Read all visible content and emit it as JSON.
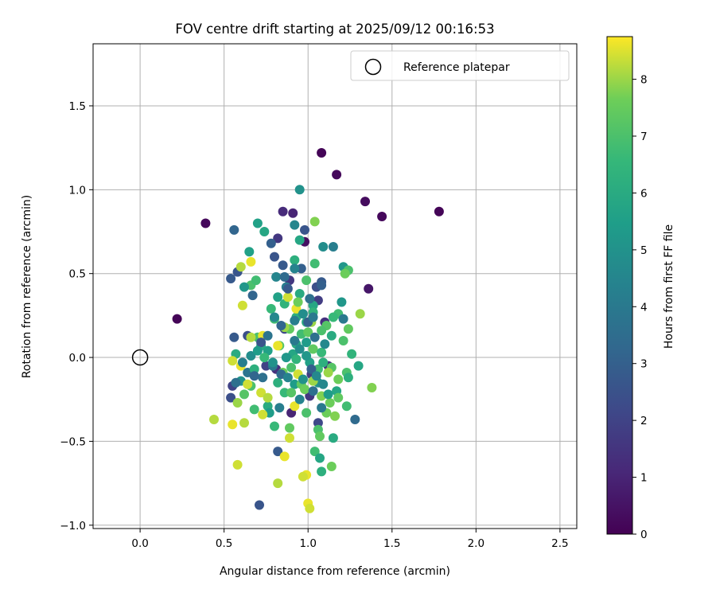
{
  "chart_data": {
    "type": "scatter",
    "title": "FOV centre drift starting at 2025/09/12 00:16:53",
    "xlabel": "Angular distance from reference (arcmin)",
    "ylabel": "Rotation from reference (arcmin)",
    "xlim": [
      -0.28,
      2.6
    ],
    "ylim": [
      -1.02,
      1.87
    ],
    "xticks": [
      0.0,
      0.5,
      1.0,
      1.5,
      2.0,
      2.5
    ],
    "xtick_labels": [
      "0.0",
      "0.5",
      "1.0",
      "1.5",
      "2.0",
      "2.5"
    ],
    "yticks": [
      -1.0,
      -0.5,
      0.0,
      0.5,
      1.0,
      1.5
    ],
    "ytick_labels": [
      "−1.0",
      "−0.5",
      "0.0",
      "0.5",
      "1.0",
      "1.5"
    ],
    "grid": true,
    "legend": {
      "placement": "top-right",
      "entries": [
        "Reference platepar"
      ]
    },
    "reference_point": {
      "name": "Reference platepar",
      "x": 0.0,
      "y": 0.0
    },
    "colorbar": {
      "label": "Hours from first FF file",
      "colormap": "viridis",
      "range": [
        0,
        8.75
      ],
      "ticks": [
        0,
        1,
        2,
        3,
        4,
        5,
        6,
        7,
        8
      ],
      "tick_labels": [
        "0",
        "1",
        "2",
        "3",
        "4",
        "5",
        "6",
        "7",
        "8"
      ]
    },
    "points": [
      [
        1.08,
        1.22,
        0.1
      ],
      [
        1.17,
        1.09,
        0.2
      ],
      [
        1.34,
        0.93,
        0.3
      ],
      [
        1.44,
        0.84,
        0.2
      ],
      [
        1.78,
        0.87,
        0.1
      ],
      [
        0.39,
        0.8,
        0.2
      ],
      [
        0.22,
        0.23,
        0.1
      ],
      [
        1.36,
        0.41,
        0.6
      ],
      [
        0.98,
        0.69,
        0.4
      ],
      [
        0.85,
        0.87,
        1.2
      ],
      [
        0.91,
        0.86,
        1.0
      ],
      [
        0.56,
        0.76,
        3.2
      ],
      [
        0.82,
        0.71,
        1.6
      ],
      [
        0.98,
        0.76,
        2.6
      ],
      [
        0.54,
        0.47,
        2.8
      ],
      [
        0.58,
        0.51,
        2.6
      ],
      [
        0.67,
        0.37,
        3.2
      ],
      [
        0.56,
        0.12,
        2.8
      ],
      [
        0.64,
        0.13,
        2.4
      ],
      [
        0.55,
        -0.17,
        2.0
      ],
      [
        0.54,
        -0.24,
        2.4
      ],
      [
        0.71,
        -0.88,
        2.6
      ],
      [
        0.82,
        -0.56,
        2.8
      ],
      [
        0.9,
        -0.33,
        1.0
      ],
      [
        1.06,
        -0.39,
        2.2
      ],
      [
        1.28,
        -0.37,
        3.4
      ],
      [
        1.01,
        -0.23,
        1.6
      ],
      [
        1.02,
        -0.1,
        1.8
      ],
      [
        1.12,
        -0.05,
        1.4
      ],
      [
        0.81,
        -0.07,
        1.4
      ],
      [
        0.75,
        -0.05,
        2.0
      ],
      [
        0.86,
        0.17,
        2.2
      ],
      [
        1.1,
        0.21,
        1.4
      ],
      [
        1.06,
        0.34,
        1.8
      ],
      [
        1.05,
        0.42,
        2.4
      ],
      [
        1.08,
        0.45,
        2.8
      ],
      [
        0.89,
        0.46,
        1.6
      ],
      [
        0.96,
        0.53,
        3.0
      ],
      [
        0.85,
        0.55,
        2.8
      ],
      [
        0.8,
        0.6,
        2.6
      ],
      [
        0.78,
        0.68,
        3.0
      ],
      [
        0.92,
        0.79,
        4.5
      ],
      [
        0.95,
        1.0,
        5.0
      ],
      [
        0.7,
        0.8,
        5.6
      ],
      [
        0.74,
        0.75,
        5.8
      ],
      [
        0.95,
        0.7,
        5.8
      ],
      [
        1.09,
        0.66,
        4.8
      ],
      [
        1.15,
        0.66,
        4.2
      ],
      [
        0.65,
        0.63,
        5.6
      ],
      [
        0.92,
        0.58,
        6.2
      ],
      [
        1.04,
        0.56,
        6.8
      ],
      [
        1.21,
        0.54,
        5.2
      ],
      [
        1.24,
        0.52,
        7.0
      ],
      [
        1.22,
        0.5,
        7.6
      ],
      [
        0.99,
        0.46,
        7.0
      ],
      [
        0.66,
        0.43,
        7.0
      ],
      [
        0.69,
        0.46,
        6.8
      ],
      [
        0.62,
        0.42,
        5.2
      ],
      [
        0.81,
        0.48,
        4.5
      ],
      [
        0.87,
        0.42,
        4.2
      ],
      [
        0.95,
        0.38,
        6.0
      ],
      [
        0.86,
        0.32,
        6.4
      ],
      [
        0.82,
        0.36,
        5.6
      ],
      [
        1.03,
        0.31,
        5.8
      ],
      [
        1.03,
        0.27,
        6.4
      ],
      [
        1.2,
        0.33,
        5.2
      ],
      [
        1.18,
        0.26,
        6.8
      ],
      [
        1.21,
        0.23,
        4.0
      ],
      [
        1.24,
        0.17,
        7.4
      ],
      [
        1.31,
        0.26,
        8.0
      ],
      [
        1.11,
        0.19,
        7.2
      ],
      [
        0.93,
        0.24,
        6.2
      ],
      [
        0.78,
        0.29,
        6.6
      ],
      [
        0.8,
        0.23,
        6.8
      ],
      [
        0.89,
        0.17,
        7.4
      ],
      [
        0.99,
        0.21,
        6.0
      ],
      [
        0.96,
        0.14,
        6.8
      ],
      [
        0.93,
        0.08,
        6.0
      ],
      [
        0.99,
        0.09,
        5.4
      ],
      [
        1.03,
        0.05,
        7.4
      ],
      [
        1.08,
        0.03,
        6.6
      ],
      [
        0.91,
        0.02,
        5.8
      ],
      [
        0.83,
        0.07,
        7.2
      ],
      [
        0.72,
        0.07,
        6.0
      ],
      [
        0.7,
        0.12,
        7.0
      ],
      [
        0.76,
        0.04,
        5.6
      ],
      [
        0.57,
        0.02,
        6.0
      ],
      [
        0.66,
        0.01,
        4.8
      ],
      [
        0.64,
        -0.09,
        3.8
      ],
      [
        0.6,
        -0.14,
        5.0
      ],
      [
        0.66,
        -0.17,
        7.0
      ],
      [
        0.62,
        -0.22,
        7.2
      ],
      [
        0.68,
        -0.31,
        6.8
      ],
      [
        0.76,
        -0.29,
        6.0
      ],
      [
        0.77,
        -0.33,
        5.4
      ],
      [
        0.8,
        -0.41,
        6.6
      ],
      [
        0.89,
        -0.42,
        7.4
      ],
      [
        0.86,
        -0.21,
        6.6
      ],
      [
        0.82,
        -0.15,
        6.2
      ],
      [
        0.92,
        -0.16,
        5.4
      ],
      [
        0.96,
        -0.16,
        7.4
      ],
      [
        0.98,
        -0.19,
        7.6
      ],
      [
        0.9,
        -0.06,
        7.0
      ],
      [
        1.01,
        -0.03,
        5.6
      ],
      [
        1.06,
        -0.07,
        6.8
      ],
      [
        1.09,
        -0.03,
        6.2
      ],
      [
        1.14,
        -0.06,
        7.2
      ],
      [
        1.06,
        -0.15,
        5.0
      ],
      [
        1.08,
        -0.23,
        7.8
      ],
      [
        1.17,
        -0.2,
        5.8
      ],
      [
        1.18,
        -0.24,
        7.4
      ],
      [
        1.23,
        -0.09,
        7.0
      ],
      [
        1.13,
        -0.27,
        7.6
      ],
      [
        1.23,
        -0.29,
        6.8
      ],
      [
        1.38,
        -0.18,
        7.8
      ],
      [
        1.11,
        -0.33,
        7.6
      ],
      [
        1.15,
        -0.48,
        6.0
      ],
      [
        1.06,
        -0.43,
        7.0
      ],
      [
        1.07,
        -0.47,
        7.4
      ],
      [
        1.04,
        -0.56,
        6.8
      ],
      [
        1.07,
        -0.6,
        5.8
      ],
      [
        1.08,
        -0.68,
        6.2
      ],
      [
        1.14,
        -0.65,
        7.6
      ],
      [
        0.99,
        -0.33,
        7.0
      ],
      [
        0.9,
        -0.21,
        7.2
      ],
      [
        0.73,
        -0.34,
        8.4
      ],
      [
        0.72,
        -0.21,
        8.4
      ],
      [
        0.76,
        -0.24,
        8.2
      ],
      [
        0.92,
        -0.29,
        8.6
      ],
      [
        0.94,
        -0.1,
        8.4
      ],
      [
        0.89,
        -0.48,
        8.4
      ],
      [
        0.86,
        -0.59,
        8.6
      ],
      [
        0.82,
        -0.75,
        8.2
      ],
      [
        0.99,
        -0.7,
        8.6
      ],
      [
        0.97,
        -0.71,
        8.4
      ],
      [
        1.0,
        -0.87,
        8.6
      ],
      [
        1.01,
        -0.9,
        8.4
      ],
      [
        0.58,
        -0.64,
        8.4
      ],
      [
        0.55,
        -0.4,
        8.6
      ],
      [
        0.62,
        -0.39,
        8.2
      ],
      [
        0.44,
        -0.37,
        8.2
      ],
      [
        0.58,
        -0.27,
        8.0
      ],
      [
        0.6,
        -0.05,
        8.6
      ],
      [
        0.55,
        -0.02,
        8.4
      ],
      [
        0.64,
        -0.16,
        8.4
      ],
      [
        0.73,
        0.13,
        8.6
      ],
      [
        0.66,
        0.12,
        8.2
      ],
      [
        0.82,
        0.07,
        8.6
      ],
      [
        0.61,
        0.31,
        8.4
      ],
      [
        0.66,
        0.57,
        8.6
      ],
      [
        0.6,
        0.54,
        8.2
      ],
      [
        0.86,
        0.18,
        8.0
      ],
      [
        0.93,
        0.29,
        8.6
      ],
      [
        0.88,
        0.36,
        8.4
      ],
      [
        1.04,
        0.81,
        7.8
      ],
      [
        1.0,
        0.15,
        7.4
      ],
      [
        0.94,
        0.33,
        7.6
      ],
      [
        1.08,
        0.16,
        7.0
      ],
      [
        1.02,
        0.21,
        8.0
      ],
      [
        1.15,
        0.24,
        6.6
      ],
      [
        1.12,
        -0.09,
        8.0
      ],
      [
        1.18,
        -0.13,
        7.6
      ],
      [
        1.16,
        -0.35,
        7.8
      ],
      [
        1.03,
        -0.14,
        8.0
      ],
      [
        0.85,
        -0.09,
        7.6
      ],
      [
        0.68,
        -0.07,
        6.2
      ],
      [
        0.73,
        -0.12,
        3.6
      ],
      [
        0.79,
        -0.05,
        4.0
      ],
      [
        0.84,
        -0.1,
        3.4
      ],
      [
        0.88,
        -0.12,
        4.4
      ],
      [
        0.97,
        -0.13,
        5.0
      ],
      [
        1.02,
        -0.07,
        3.0
      ],
      [
        1.05,
        -0.11,
        4.6
      ],
      [
        0.99,
        0.01,
        5.2
      ],
      [
        0.95,
        0.05,
        4.8
      ],
      [
        0.92,
        0.1,
        4.0
      ],
      [
        1.04,
        0.12,
        3.6
      ],
      [
        1.1,
        0.08,
        4.6
      ],
      [
        1.0,
        0.21,
        3.0
      ],
      [
        1.03,
        0.24,
        4.0
      ],
      [
        0.97,
        0.26,
        4.8
      ],
      [
        0.92,
        0.22,
        4.2
      ],
      [
        0.84,
        0.19,
        3.2
      ],
      [
        0.8,
        0.24,
        4.6
      ],
      [
        0.76,
        0.13,
        3.8
      ],
      [
        0.88,
        0.41,
        2.8
      ],
      [
        0.86,
        0.48,
        3.4
      ],
      [
        0.92,
        0.53,
        4.4
      ],
      [
        1.08,
        0.43,
        3.0
      ],
      [
        1.01,
        0.35,
        3.6
      ],
      [
        0.72,
        0.09,
        2.6
      ],
      [
        0.68,
        -0.11,
        3.2
      ],
      [
        0.61,
        -0.03,
        4.2
      ],
      [
        0.57,
        -0.15,
        3.6
      ],
      [
        0.83,
        -0.3,
        4.2
      ],
      [
        0.95,
        -0.25,
        4.4
      ],
      [
        1.03,
        -0.2,
        3.6
      ],
      [
        1.09,
        -0.16,
        4.6
      ],
      [
        1.12,
        -0.22,
        5.4
      ],
      [
        1.08,
        -0.3,
        4.0
      ],
      [
        0.93,
        -0.01,
        6.4
      ],
      [
        0.87,
        0.0,
        5.2
      ],
      [
        0.79,
        -0.03,
        5.0
      ],
      [
        0.74,
        0.0,
        6.6
      ],
      [
        0.7,
        0.04,
        5.4
      ],
      [
        1.21,
        0.1,
        7.0
      ],
      [
        1.14,
        0.13,
        6.0
      ],
      [
        1.26,
        0.02,
        6.4
      ],
      [
        1.3,
        -0.05,
        5.8
      ],
      [
        1.24,
        -0.12,
        6.2
      ]
    ]
  }
}
